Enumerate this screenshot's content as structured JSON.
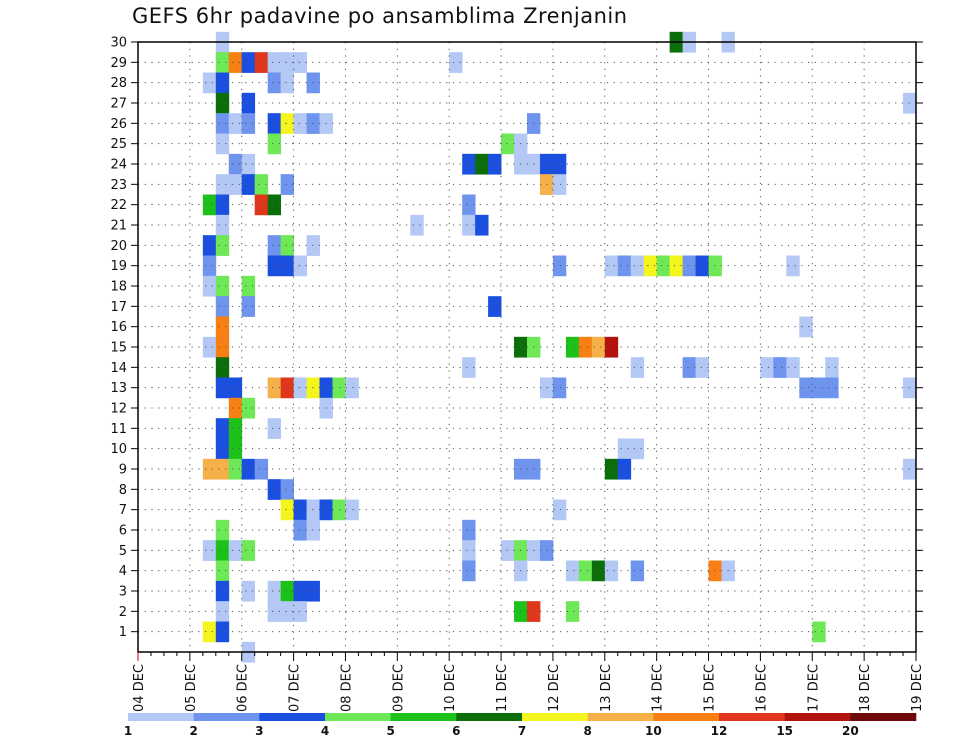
{
  "chart_data": {
    "type": "heatmap",
    "title": "GEFS 6hr padavine po ansamblima Zrenjanin",
    "x_tick_labels": [
      "04 DEC",
      "05 DEC",
      "06 DEC",
      "07 DEC",
      "08 DEC",
      "09 DEC",
      "10 DEC",
      "11 DEC",
      "12 DEC",
      "13 DEC",
      "14 DEC",
      "15 DEC",
      "16 DEC",
      "17 DEC",
      "18 DEC",
      "19 DEC"
    ],
    "y_tick_labels": [
      "1",
      "2",
      "3",
      "4",
      "5",
      "6",
      "7",
      "8",
      "9",
      "10",
      "11",
      "12",
      "13",
      "14",
      "15",
      "16",
      "17",
      "18",
      "19",
      "20",
      "21",
      "22",
      "23",
      "24",
      "25",
      "26",
      "27",
      "28",
      "29",
      "30"
    ],
    "ylim": [
      0,
      30
    ],
    "time_step_hours": 6,
    "grid": "dotted",
    "colorbar": {
      "position": "bottom",
      "tick_labels": [
        "1",
        "2",
        "3",
        "4",
        "5",
        "6",
        "7",
        "8",
        "10",
        "12",
        "15",
        "20"
      ],
      "colors": [
        "#b4c8f5",
        "#6e94ee",
        "#1a4fe0",
        "#6fe858",
        "#1cc219",
        "#0b6e0b",
        "#f5f51e",
        "#f6b04a",
        "#f77f14",
        "#e0361b",
        "#b4120c",
        "#6e0a0a"
      ]
    },
    "cell_value_encoding": "color class index: 1 = 1-2, 2 = 2-3, 3 = 3-4, 4 = 4-5, 5 = 5-6, 6 = 6-7, 7 = 7-8, 8 = 8-10, 9 = 10-12, 10 = 12-15, 11 = 15-20, 12 = 20+",
    "cells_row_format": "each row = [ensemble member, 6-hour step index starting at 04 DEC 00Z, color class...]; consecutive class values occupy consecutive 6-hour steps",
    "cells": [
      [
        30,
        6,
        1
      ],
      [
        30,
        41,
        6,
        1
      ],
      [
        30,
        45,
        1
      ],
      [
        29,
        6,
        4,
        9,
        3,
        10,
        1,
        1,
        1
      ],
      [
        29,
        24,
        1
      ],
      [
        28,
        5,
        1,
        3
      ],
      [
        28,
        10,
        2,
        1
      ],
      [
        28,
        13,
        2
      ],
      [
        27,
        6,
        6
      ],
      [
        27,
        8,
        3
      ],
      [
        27,
        59,
        1
      ],
      [
        26,
        6,
        2,
        1,
        2
      ],
      [
        26,
        10,
        3,
        7,
        1,
        2,
        1
      ],
      [
        26,
        30,
        2
      ],
      [
        25,
        6,
        1
      ],
      [
        25,
        10,
        4
      ],
      [
        25,
        28,
        4,
        1
      ],
      [
        24,
        7,
        2,
        1
      ],
      [
        24,
        25,
        3,
        6,
        3
      ],
      [
        24,
        29,
        1,
        1,
        3,
        3
      ],
      [
        23,
        6,
        1,
        1,
        3,
        4
      ],
      [
        23,
        11,
        2
      ],
      [
        23,
        31,
        8,
        1
      ],
      [
        22,
        5,
        5,
        3
      ],
      [
        22,
        9,
        10,
        6
      ],
      [
        22,
        25,
        2
      ],
      [
        21,
        6,
        1
      ],
      [
        21,
        21,
        1
      ],
      [
        21,
        25,
        1,
        3
      ],
      [
        20,
        5,
        3,
        4
      ],
      [
        20,
        10,
        2,
        4
      ],
      [
        20,
        13,
        1
      ],
      [
        19,
        5,
        2
      ],
      [
        19,
        10,
        3,
        3,
        1
      ],
      [
        19,
        32,
        2
      ],
      [
        19,
        36,
        1,
        2,
        1,
        7,
        4,
        7,
        2,
        3,
        4
      ],
      [
        19,
        50,
        1
      ],
      [
        18,
        5,
        1,
        4
      ],
      [
        18,
        8,
        4
      ],
      [
        17,
        6,
        2
      ],
      [
        17,
        8,
        2
      ],
      [
        17,
        27,
        3
      ],
      [
        16,
        6,
        9
      ],
      [
        16,
        51,
        1
      ],
      [
        15,
        5,
        1,
        9
      ],
      [
        15,
        29,
        6,
        4
      ],
      [
        15,
        33,
        5,
        9,
        8,
        11
      ],
      [
        14,
        6,
        6
      ],
      [
        14,
        25,
        1
      ],
      [
        14,
        38,
        1
      ],
      [
        14,
        42,
        2,
        1
      ],
      [
        14,
        48,
        1,
        2,
        1
      ],
      [
        14,
        53,
        1
      ],
      [
        13,
        6,
        3,
        3
      ],
      [
        13,
        10,
        8,
        10,
        1,
        7,
        3,
        4,
        1
      ],
      [
        13,
        31,
        1,
        2
      ],
      [
        13,
        51,
        2,
        2,
        2
      ],
      [
        13,
        59,
        1
      ],
      [
        12,
        7,
        9,
        4
      ],
      [
        12,
        14,
        1
      ],
      [
        11,
        6,
        3,
        5
      ],
      [
        11,
        10,
        1
      ],
      [
        10,
        6,
        3,
        5
      ],
      [
        10,
        37,
        1,
        1
      ],
      [
        9,
        5,
        8,
        8,
        4,
        3,
        2
      ],
      [
        9,
        29,
        2,
        2
      ],
      [
        9,
        36,
        6,
        3
      ],
      [
        9,
        59,
        1
      ],
      [
        8,
        10,
        3,
        2
      ],
      [
        7,
        11,
        7,
        3,
        1,
        3,
        4,
        1
      ],
      [
        7,
        32,
        1
      ],
      [
        6,
        6,
        4
      ],
      [
        6,
        12,
        2,
        1
      ],
      [
        6,
        25,
        2
      ],
      [
        5,
        5,
        1,
        5,
        1,
        4
      ],
      [
        5,
        25,
        1
      ],
      [
        5,
        28,
        1,
        4,
        1,
        2
      ],
      [
        4,
        6,
        4
      ],
      [
        4,
        25,
        2
      ],
      [
        4,
        29,
        1
      ],
      [
        4,
        33,
        1,
        4,
        6,
        1
      ],
      [
        4,
        38,
        2
      ],
      [
        4,
        44,
        9,
        1
      ],
      [
        3,
        6,
        3
      ],
      [
        3,
        8,
        1
      ],
      [
        3,
        10,
        1,
        5,
        3,
        3
      ],
      [
        2,
        6,
        1
      ],
      [
        2,
        10,
        1,
        1,
        1
      ],
      [
        2,
        29,
        5,
        10
      ],
      [
        2,
        33,
        4
      ],
      [
        1,
        5,
        7,
        3
      ],
      [
        1,
        52,
        4
      ],
      [
        0,
        8,
        1
      ]
    ]
  }
}
